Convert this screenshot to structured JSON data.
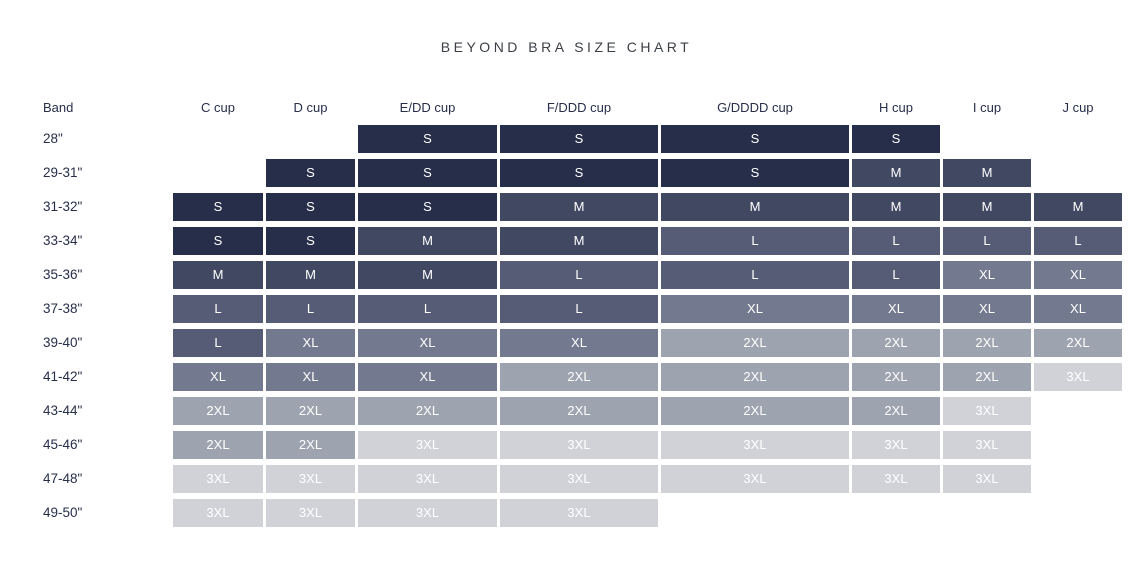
{
  "chart_data": {
    "type": "table",
    "title": "BEYOND BRA SIZE CHART",
    "columns": [
      "Band",
      "C cup",
      "D cup",
      "E/DD cup",
      "F/DDD cup",
      "G/DDDD cup",
      "H cup",
      "I cup",
      "J cup"
    ],
    "rows": [
      {
        "band": "28\"",
        "sizes": [
          "",
          "",
          "S",
          "S",
          "S",
          "S",
          "",
          ""
        ]
      },
      {
        "band": "29-31\"",
        "sizes": [
          "",
          "S",
          "S",
          "S",
          "S",
          "M",
          "M",
          ""
        ]
      },
      {
        "band": "31-32\"",
        "sizes": [
          "S",
          "S",
          "S",
          "M",
          "M",
          "M",
          "M",
          "M"
        ]
      },
      {
        "band": "33-34\"",
        "sizes": [
          "S",
          "S",
          "M",
          "M",
          "L",
          "L",
          "L",
          "L"
        ]
      },
      {
        "band": "35-36\"",
        "sizes": [
          "M",
          "M",
          "M",
          "L",
          "L",
          "L",
          "XL",
          "XL"
        ]
      },
      {
        "band": "37-38\"",
        "sizes": [
          "L",
          "L",
          "L",
          "L",
          "XL",
          "XL",
          "XL",
          "XL"
        ]
      },
      {
        "band": "39-40\"",
        "sizes": [
          "L",
          "XL",
          "XL",
          "XL",
          "2XL",
          "2XL",
          "2XL",
          "2XL"
        ]
      },
      {
        "band": "41-42\"",
        "sizes": [
          "XL",
          "XL",
          "XL",
          "2XL",
          "2XL",
          "2XL",
          "2XL",
          "3XL"
        ]
      },
      {
        "band": "43-44\"",
        "sizes": [
          "2XL",
          "2XL",
          "2XL",
          "2XL",
          "2XL",
          "2XL",
          "3XL",
          ""
        ]
      },
      {
        "band": "45-46\"",
        "sizes": [
          "2XL",
          "2XL",
          "3XL",
          "3XL",
          "3XL",
          "3XL",
          "3XL",
          ""
        ]
      },
      {
        "band": "47-48\"",
        "sizes": [
          "3XL",
          "3XL",
          "3XL",
          "3XL",
          "3XL",
          "3XL",
          "3XL",
          ""
        ]
      },
      {
        "band": "49-50\"",
        "sizes": [
          "3XL",
          "3XL",
          "3XL",
          "3XL",
          "",
          "",
          "",
          ""
        ]
      }
    ],
    "size_colors": {
      "S": "#272e4a",
      "M": "#414862",
      "L": "#565c76",
      "XL": "#737a8f",
      "2XL": "#9ea3b0",
      "3XL": "#d0d2d8"
    },
    "cell_text_color": "#ffffff",
    "header_text_color": "#272e4a",
    "title_color": "#3b3f46",
    "layout_hints": "grid on (white gaps between cells), no legend, darker shade = smaller size"
  }
}
